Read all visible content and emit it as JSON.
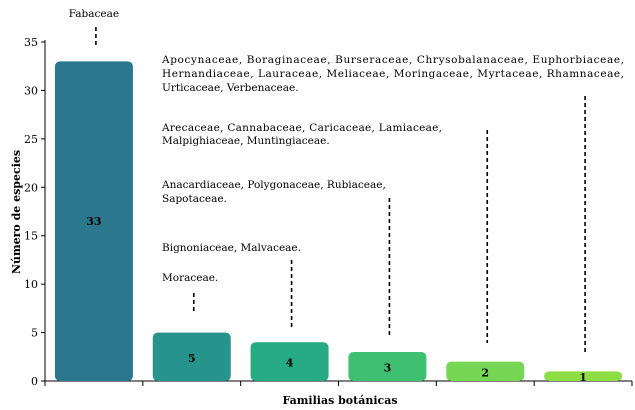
{
  "chart_data": {
    "type": "bar",
    "xlabel": "Familias botánicas",
    "ylabel": "Número de especies",
    "ylim": [
      0,
      35
    ],
    "yticks": [
      0,
      5,
      10,
      15,
      20,
      25,
      30,
      35
    ],
    "grid": false,
    "legend": "none",
    "values": [
      33,
      5,
      4,
      3,
      2,
      1
    ],
    "data_labels": [
      "33",
      "5",
      "4",
      "3",
      "2",
      "1"
    ],
    "colors": [
      "#2b788e",
      "#26948c",
      "#27ab84",
      "#3fc071",
      "#77d653",
      "#8fdd45"
    ],
    "annotations": [
      {
        "bar": 0,
        "lines": [
          "Fabaceae"
        ]
      },
      {
        "bar": 1,
        "lines": [
          "Moraceae."
        ]
      },
      {
        "bar": 2,
        "lines": [
          "Bignoniaceae, Malvaceae."
        ]
      },
      {
        "bar": 3,
        "lines": [
          "Anacardiaceae, Polygonaceae, Rubiaceae,",
          "Sapotaceae."
        ]
      },
      {
        "bar": 4,
        "lines": [
          "Arecaceae, Cannabaceae, Caricaceae, Lamiaceae,",
          "Malpighiaceae, Muntingiaceae."
        ]
      },
      {
        "bar": 5,
        "lines": [
          "Apocynaceae, Boraginaceae, Burseraceae, Chrysobalanaceae, Euphorbiaceae,",
          "Hernandiaceae, Lauraceae, Meliaceae, Moringaceae, Myrtaceae, Rhamnaceae,",
          "Urticaceae, Verbenaceae."
        ]
      }
    ]
  }
}
